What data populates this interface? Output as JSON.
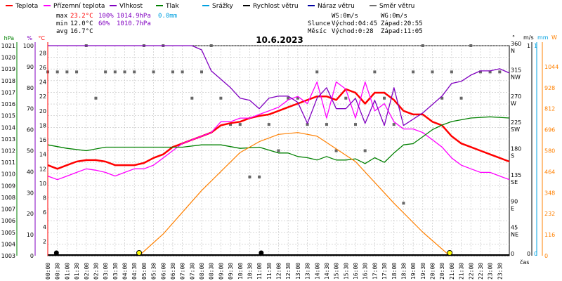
{
  "legend": [
    {
      "label": "Teplota",
      "color": "#ff0000"
    },
    {
      "label": "Přízemní teplota",
      "color": "#ff00ff"
    },
    {
      "label": "Vlhkost",
      "color": "#8000c0"
    },
    {
      "label": "Tlak",
      "color": "#008000"
    },
    {
      "label": "Srážky",
      "color": "#00a0e0"
    },
    {
      "label": "Rychlost větru",
      "color": "#000000"
    },
    {
      "label": "Náraz větru",
      "color": "#0000a0"
    },
    {
      "label": "Směr větru",
      "color": "#707070"
    }
  ],
  "stats": {
    "max_label": "max",
    "max_temp": "23.2°C",
    "max_hum": "100%",
    "max_press": "1014.9hPa",
    "max_rain": "0.0mm",
    "min_label": "min",
    "min_temp": "12.0°C",
    "min_hum": "60%",
    "min_press": "1010.7hPa",
    "avg_label": "avg",
    "avg_temp": "16.7°C"
  },
  "wind_info": {
    "ws": "WS:0m/s",
    "wg": "WG:0m/s"
  },
  "sun": {
    "label": "Slunce",
    "rise": "Východ:04:45",
    "set": "Západ:20:55"
  },
  "moon": {
    "label": "Měsíc",
    "rise": "Východ:0:28",
    "set": "Západ:11:05"
  },
  "chart_data": {
    "type": "line",
    "title": "10.6.2023",
    "xlabel": "čas",
    "x_ticks": [
      "00:00",
      "00:30",
      "01:00",
      "01:30",
      "02:00",
      "02:30",
      "03:00",
      "03:30",
      "04:00",
      "04:30",
      "05:00",
      "05:30",
      "06:00",
      "06:30",
      "07:00",
      "07:30",
      "08:00",
      "08:30",
      "09:00",
      "09:30",
      "10:00",
      "10:30",
      "11:00",
      "11:30",
      "12:00",
      "12:30",
      "13:00",
      "13:30",
      "14:00",
      "14:30",
      "15:00",
      "15:30",
      "16:00",
      "16:30",
      "17:00",
      "17:30",
      "18:00",
      "18:30",
      "19:00",
      "19:30",
      "20:00",
      "20:30",
      "21:00",
      "21:30",
      "22:00",
      "22:30",
      "23:00",
      "23:30"
    ],
    "xlim": [
      0,
      24
    ],
    "axes": {
      "pressure": {
        "unit": "hPa",
        "ticks": [
          "1003",
          "1004",
          "1005",
          "1006",
          "1007",
          "1008",
          "1009",
          "1010",
          "1011",
          "1012",
          "1013",
          "1014",
          "1015",
          "1016",
          "1017",
          "1018",
          "1019",
          "1020",
          "1021"
        ],
        "range": [
          1003,
          1021
        ]
      },
      "humidity": {
        "unit": "%",
        "ticks": [
          "0",
          "10",
          "20",
          "30",
          "40",
          "50",
          "60",
          "70",
          "80",
          "90",
          "100"
        ],
        "range": [
          0,
          100
        ]
      },
      "temperature": {
        "unit": "°C",
        "ticks": [
          "2",
          "4",
          "6",
          "8",
          "10",
          "12",
          "14",
          "16",
          "18",
          "20",
          "22",
          "24",
          "26",
          "28"
        ],
        "range": [
          0,
          29
        ]
      },
      "direction": {
        "unit": "°",
        "ticks": [
          "0",
          "45 NE",
          "90 E",
          "135 SE",
          "180 S",
          "225 SW",
          "270 W",
          "315 NW",
          "360 N"
        ],
        "range": [
          0,
          360
        ]
      },
      "wind": {
        "unit": "m/s",
        "ticks": [
          "0",
          "1"
        ],
        "range": [
          0,
          1
        ]
      },
      "rain": {
        "unit": "mm",
        "ticks": [
          "0",
          "1"
        ],
        "range": [
          0,
          1
        ]
      },
      "solar": {
        "unit": "W",
        "ticks": [
          "0",
          "116",
          "232",
          "348",
          "464",
          "580",
          "696",
          "812",
          "928",
          "1044"
        ],
        "range": [
          0,
          1160
        ]
      }
    },
    "series": [
      {
        "name": "Teplota",
        "axis": "temperature",
        "x": [
          0,
          0.5,
          1,
          1.5,
          2,
          2.5,
          3,
          3.5,
          4,
          4.5,
          5,
          5.5,
          6,
          6.5,
          7,
          7.5,
          8,
          8.5,
          9,
          9.5,
          10,
          10.5,
          11,
          11.5,
          12,
          12.5,
          13,
          13.5,
          14,
          14.5,
          15,
          15.5,
          16,
          16.5,
          17,
          17.5,
          18,
          18.5,
          19,
          19.5,
          20,
          20.5,
          21,
          21.5,
          22,
          22.5,
          23,
          23.5,
          24
        ],
        "y": [
          12.5,
          12,
          12.5,
          13,
          13.2,
          13.2,
          13,
          12.5,
          12.5,
          12.5,
          12.8,
          13.5,
          14,
          15,
          15.5,
          16,
          16.5,
          17,
          18,
          18.3,
          18.5,
          19,
          19.3,
          19.5,
          20,
          20.5,
          21,
          21.5,
          22,
          22,
          21.5,
          23,
          22.5,
          21,
          22.5,
          22.5,
          21.5,
          20,
          19.5,
          19.5,
          18.5,
          18,
          16.5,
          15.5,
          15,
          14.5,
          14,
          13.5,
          13
        ]
      },
      {
        "name": "Přízemní teplota",
        "axis": "temperature",
        "x": [
          0,
          0.5,
          1,
          1.5,
          2,
          2.5,
          3,
          3.5,
          4,
          4.5,
          5,
          5.5,
          6,
          6.5,
          7,
          7.5,
          8,
          8.5,
          9,
          9.5,
          10,
          10.5,
          11,
          11.5,
          12,
          12.5,
          13,
          13.5,
          14,
          14.5,
          15,
          15.5,
          16,
          16.5,
          17,
          17.5,
          18,
          18.5,
          19,
          19.5,
          20,
          20.5,
          21,
          21.5,
          22,
          22.5,
          23,
          23.5,
          24
        ],
        "y": [
          11,
          10.5,
          11,
          11.5,
          12,
          11.8,
          11.5,
          11,
          11.5,
          12,
          12,
          12.5,
          13.5,
          14.5,
          15.5,
          16,
          16.5,
          17,
          18.5,
          18.5,
          19,
          19,
          19.5,
          20,
          20.5,
          21.5,
          22,
          21,
          24,
          19,
          24,
          23,
          19,
          24,
          20,
          21,
          18.5,
          17.5,
          17.5,
          17,
          16,
          15,
          13.5,
          12.5,
          12,
          11.5,
          11.5,
          11,
          10.5
        ]
      },
      {
        "name": "Vlhkost",
        "axis": "humidity",
        "x": [
          0,
          1,
          2,
          3,
          4,
          5,
          6,
          7,
          7.5,
          8,
          8.5,
          9,
          9.5,
          10,
          10.5,
          11,
          11.5,
          12,
          12.5,
          13,
          13.5,
          14,
          14.5,
          15,
          15.5,
          16,
          16.5,
          17,
          17.5,
          18,
          18.5,
          19,
          19.5,
          20,
          20.5,
          21,
          21.5,
          22,
          22.5,
          23,
          23.5,
          24
        ],
        "y": [
          100,
          100,
          100,
          100,
          100,
          100,
          100,
          100,
          100,
          98,
          88,
          84,
          80,
          75,
          74,
          70,
          75,
          76,
          76,
          73,
          63,
          75,
          80,
          70,
          70,
          75,
          63,
          74,
          62,
          80,
          62,
          65,
          68,
          72,
          76,
          82,
          83,
          86,
          88,
          88,
          89,
          87
        ]
      },
      {
        "name": "Tlak",
        "axis": "pressure",
        "x": [
          0,
          1,
          2,
          3,
          4,
          5,
          6,
          7,
          8,
          9,
          10,
          11,
          12,
          12.5,
          13,
          13.5,
          14,
          14.5,
          15,
          15.5,
          16,
          16.5,
          17,
          17.5,
          18,
          18.5,
          19,
          19.5,
          20,
          20.5,
          21,
          22,
          23,
          24
        ],
        "y": [
          1012.5,
          1012.2,
          1012,
          1012.3,
          1012.3,
          1012.3,
          1012.3,
          1012.3,
          1012.5,
          1012.5,
          1012.2,
          1012.3,
          1011.8,
          1011.8,
          1011.5,
          1011.4,
          1011.2,
          1011.5,
          1011.2,
          1011.2,
          1011.3,
          1010.9,
          1011.4,
          1011,
          1011.8,
          1012.5,
          1012.6,
          1013.2,
          1013.8,
          1014.2,
          1014.5,
          1014.8,
          1014.9,
          1014.8
        ]
      },
      {
        "name": "Slunce",
        "axis": "solar",
        "x": [
          4.75,
          6,
          8,
          10,
          11,
          12,
          13,
          14,
          16,
          18,
          19.5,
          20.9
        ],
        "y": [
          0,
          120,
          360,
          570,
          630,
          670,
          680,
          660,
          520,
          290,
          130,
          0
        ]
      }
    ],
    "wind_direction_points": [
      [
        0,
        315
      ],
      [
        0.5,
        315
      ],
      [
        1,
        315
      ],
      [
        1.5,
        315
      ],
      [
        2,
        360
      ],
      [
        2.5,
        270
      ],
      [
        3,
        315
      ],
      [
        3.5,
        315
      ],
      [
        4,
        315
      ],
      [
        4.5,
        315
      ],
      [
        5,
        360
      ],
      [
        5.5,
        315
      ],
      [
        6,
        360
      ],
      [
        6.5,
        315
      ],
      [
        7,
        315
      ],
      [
        7.5,
        270
      ],
      [
        8,
        315
      ],
      [
        8.5,
        360
      ],
      [
        9,
        270
      ],
      [
        9.5,
        225
      ],
      [
        10,
        225
      ],
      [
        10.5,
        135
      ],
      [
        11,
        135
      ],
      [
        11.5,
        225
      ],
      [
        12,
        180
      ],
      [
        12.5,
        270
      ],
      [
        13,
        270
      ],
      [
        13.5,
        225
      ],
      [
        14,
        315
      ],
      [
        14.5,
        225
      ],
      [
        15,
        180
      ],
      [
        15.5,
        270
      ],
      [
        16,
        225
      ],
      [
        16.5,
        180
      ],
      [
        17,
        315
      ],
      [
        17.5,
        270
      ],
      [
        18,
        225
      ],
      [
        18.5,
        90
      ],
      [
        19,
        315
      ],
      [
        19.5,
        360
      ],
      [
        20,
        315
      ],
      [
        20.5,
        270
      ],
      [
        21,
        315
      ],
      [
        21.5,
        270
      ],
      [
        22,
        360
      ],
      [
        22.5,
        315
      ],
      [
        23,
        315
      ],
      [
        23.5,
        315
      ]
    ],
    "sun_markers": [
      4.75,
      20.9
    ],
    "moon_markers": [
      0.45,
      11.1
    ]
  }
}
